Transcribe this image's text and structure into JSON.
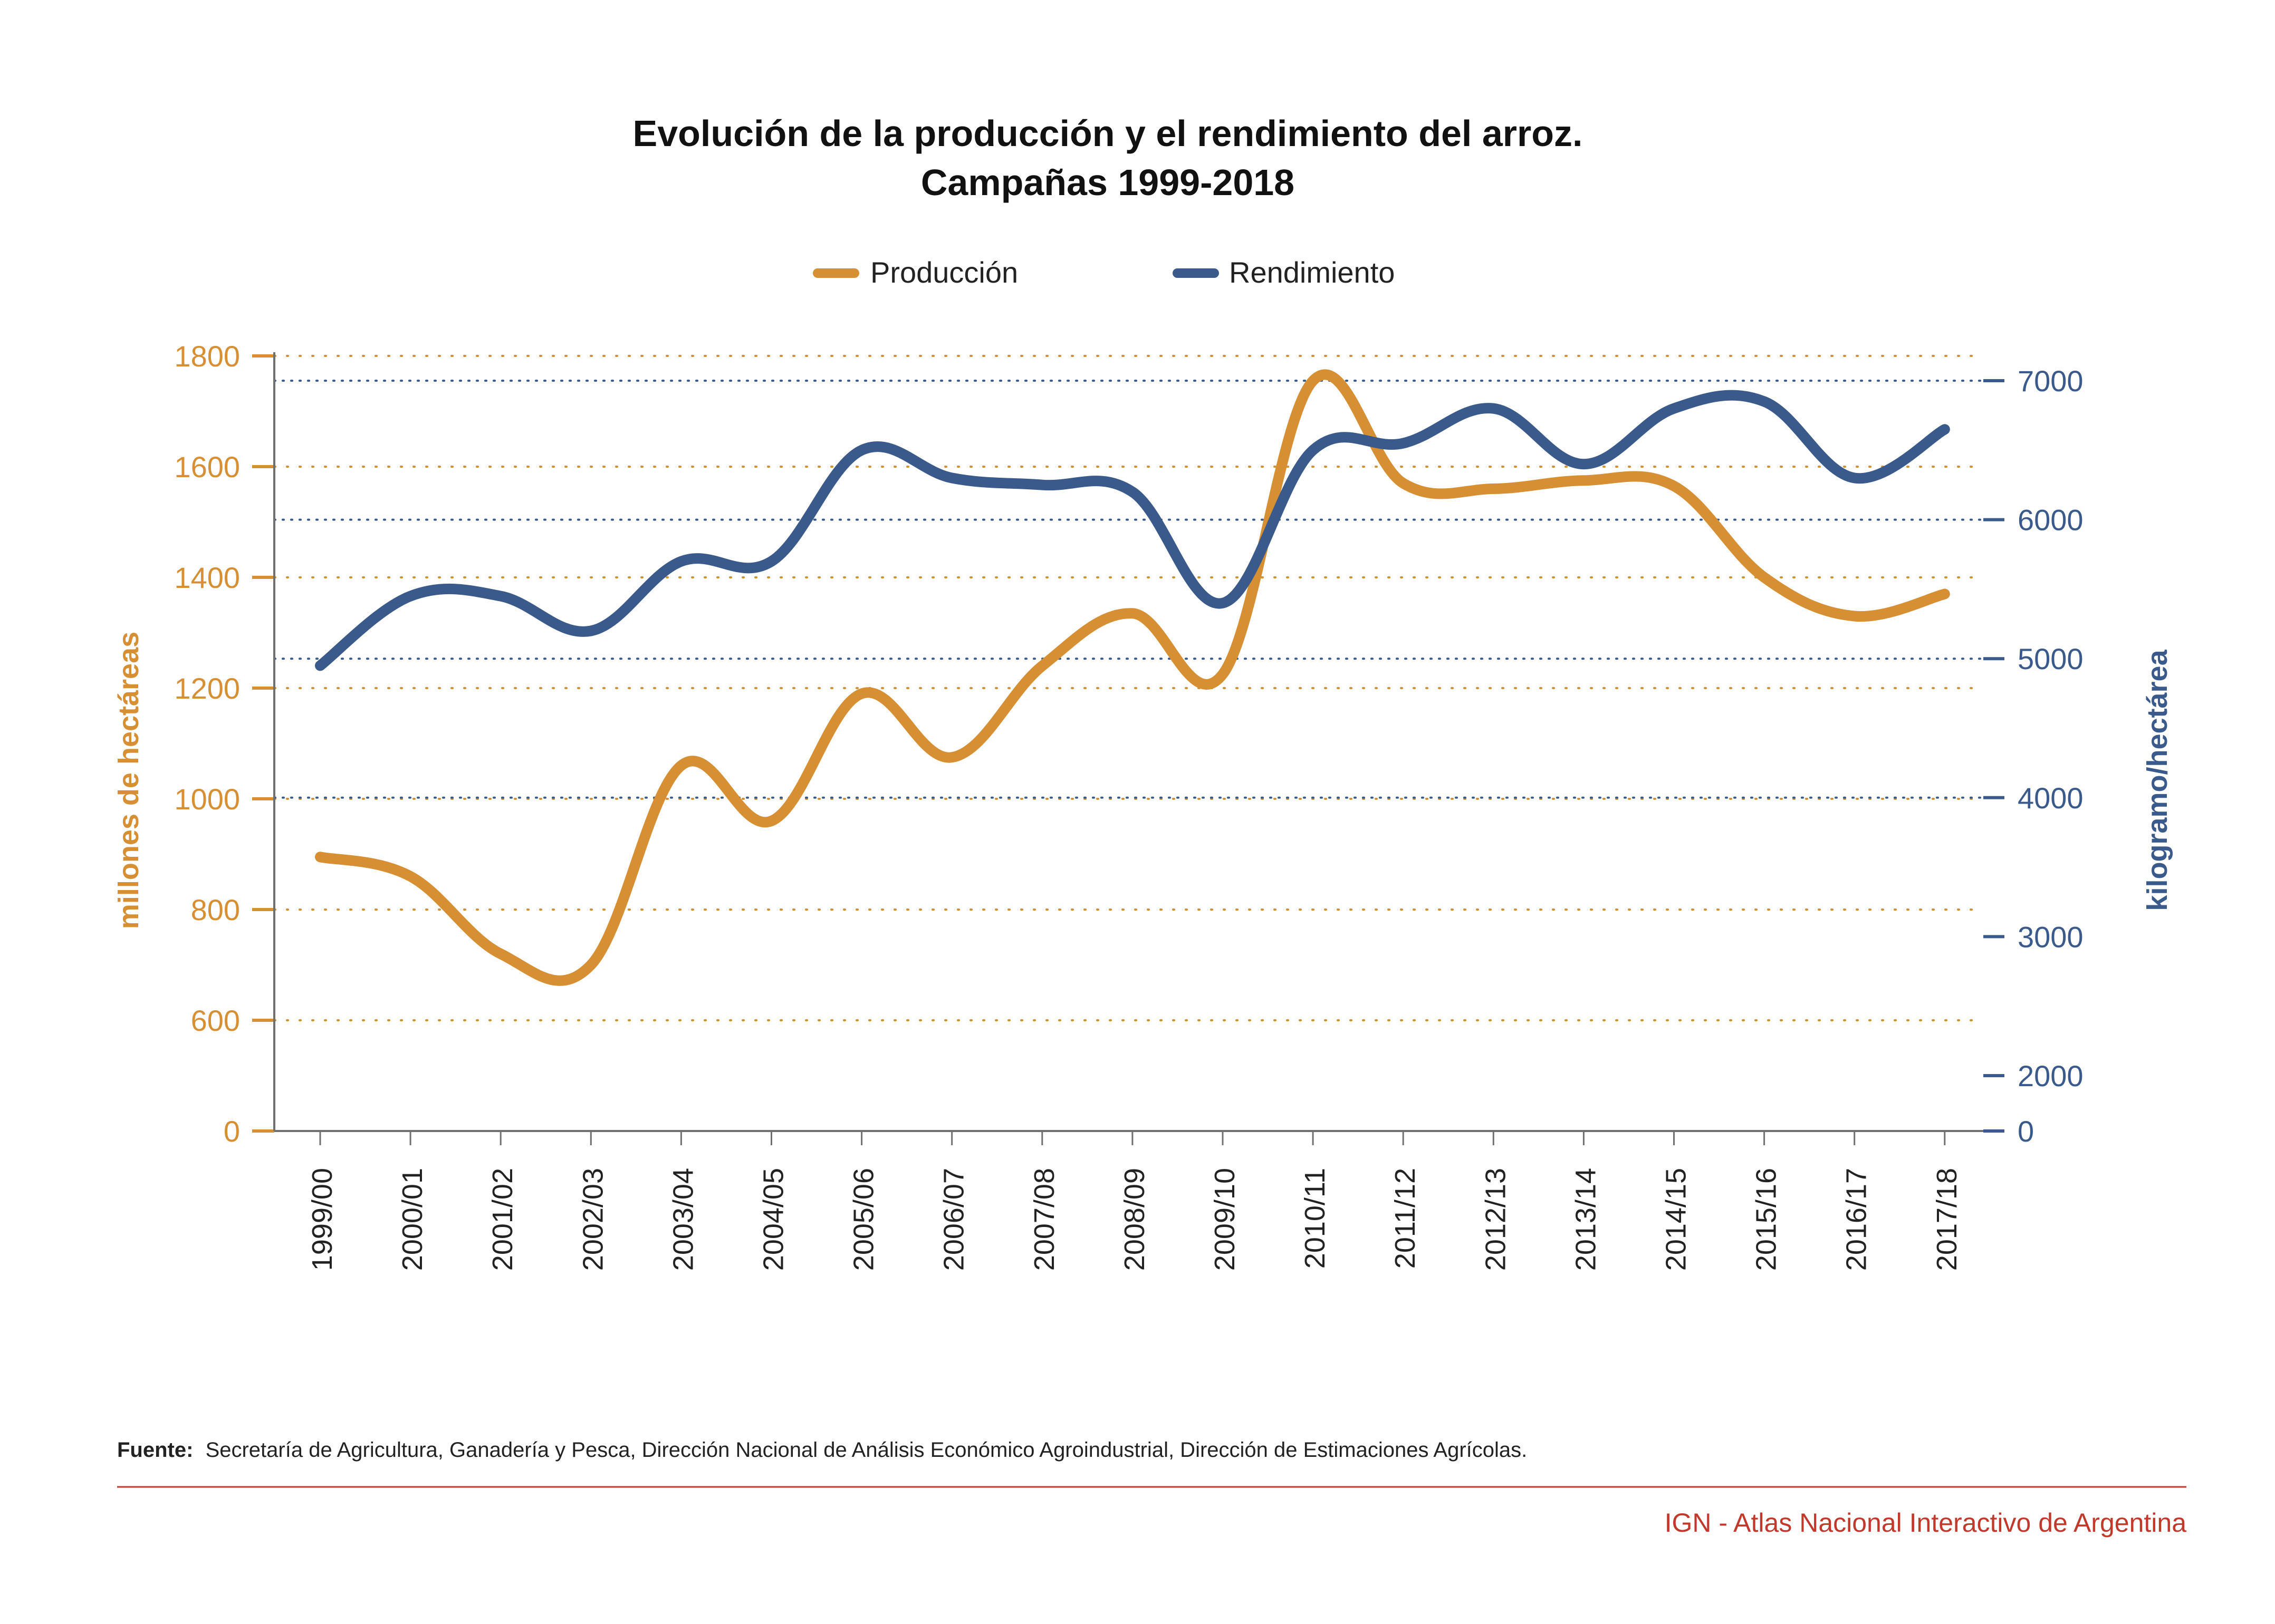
{
  "chart_data": {
    "type": "line",
    "title": "Evolución de la producción y el rendimiento del arroz.",
    "subtitle": "Campañas 1999-2018",
    "categories": [
      "1999/00",
      "2000/01",
      "2001/02",
      "2002/03",
      "2003/04",
      "2004/05",
      "2005/06",
      "2006/07",
      "2007/08",
      "2008/09",
      "2009/10",
      "2010/11",
      "2011/12",
      "2012/13",
      "2013/14",
      "2014/15",
      "2015/16",
      "2016/17",
      "2017/18"
    ],
    "series": [
      {
        "name": "Producción",
        "color": "#D68F33",
        "axis": "left",
        "values": [
          895,
          860,
          720,
          700,
          1060,
          960,
          1190,
          1075,
          1240,
          1335,
          1225,
          1755,
          1570,
          1560,
          1575,
          1565,
          1400,
          1330,
          1370
        ]
      },
      {
        "name": "Rendimiento",
        "color": "#3A5A8C",
        "axis": "right",
        "values": [
          4950,
          5450,
          5450,
          5200,
          5700,
          5700,
          6500,
          6300,
          6250,
          6200,
          5400,
          6500,
          6550,
          6800,
          6400,
          6800,
          6850,
          6300,
          6650
        ]
      }
    ],
    "yaxis_left": {
      "label": "millones de hectáreas",
      "ticks": [
        "1800",
        "1600",
        "1400",
        "1200",
        "1000",
        "800",
        "600",
        "0"
      ],
      "tick_values": [
        1800,
        1600,
        1400,
        1200,
        1000,
        800,
        600,
        0
      ]
    },
    "yaxis_right": {
      "label": "kilogramo/hectárea",
      "ticks": [
        "7000",
        "6000",
        "5000",
        "4000",
        "3000",
        "2000",
        "0"
      ],
      "tick_values": [
        7000,
        6000,
        5000,
        4000,
        3000,
        2000,
        0
      ]
    },
    "legend_position": "top-center",
    "grid": true
  },
  "footer": {
    "source_label": "Fuente:",
    "source_text": "Secretaría de Agricultura, Ganadería y Pesca, Dirección Nacional de Análisis Económico Agroindustrial, Dirección de Estimaciones Agrícolas.",
    "credit": "IGN - Atlas Nacional Interactivo de Argentina"
  },
  "colors": {
    "produccion": "#D68F33",
    "rendimiento": "#3A5A8C",
    "axis_gray": "#707070",
    "credit_red": "#C0392B"
  }
}
